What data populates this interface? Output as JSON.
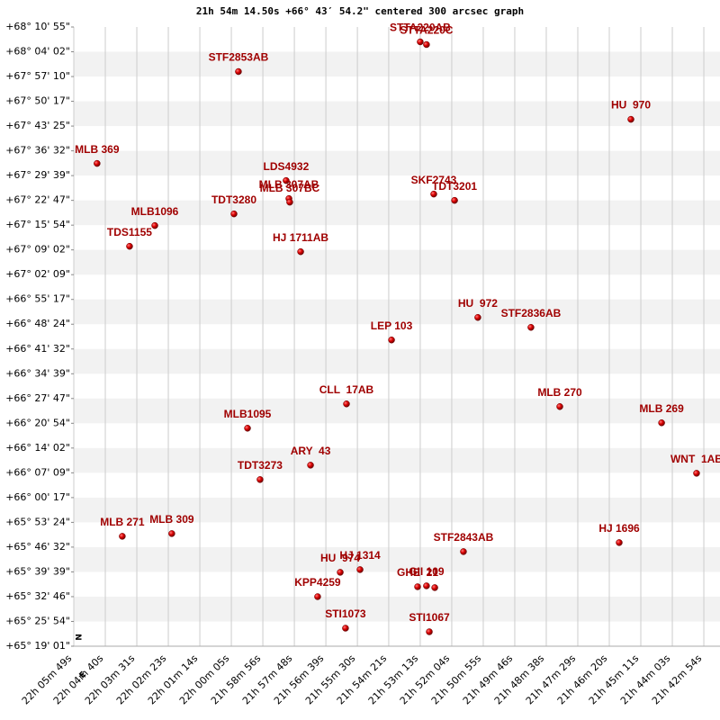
{
  "chart_data": {
    "type": "scatter",
    "title": "21h 54m 14.50s +66° 43′ 54.2\" centered 300 arcsec graph",
    "x": [
      21.9971,
      21.8869,
      21.8831,
      21.7592,
      22.0828,
      21.9682,
      21.9665,
      21.966,
      21.9998,
      22.0478,
      21.8787,
      21.8661,
      22.0631,
      21.9594,
      21.852,
      21.8198,
      21.9043,
      21.9316,
      21.8023,
      21.7406,
      21.9916,
      21.9534,
      21.984,
      21.7194,
      22.0675,
      22.0375,
      21.7663,
      21.8607,
      21.9354,
      21.9234,
      21.8885,
      21.8831,
      21.8781,
      21.9491,
      21.9322,
      21.8814
    ],
    "values": [
      67.9753,
      68.1128,
      68.1003,
      67.7544,
      67.5503,
      67.4711,
      67.3878,
      67.3711,
      67.3169,
      67.2628,
      67.4086,
      67.3794,
      67.1669,
      67.1419,
      66.8378,
      66.7919,
      66.7336,
      66.4378,
      66.4253,
      66.3503,
      66.3253,
      66.1544,
      66.0878,
      66.1169,
      65.8253,
      65.8378,
      65.7961,
      65.7544,
      65.6586,
      65.6711,
      65.5919,
      65.5961,
      65.5878,
      65.5461,
      65.4003,
      65.3836
    ],
    "point_labels": [
      "STF2853AB",
      "STTA220AB",
      "STTA220C",
      "HU  970",
      "MLB 369",
      "LDS4932",
      "MLB 307AB",
      "MLB 307BC",
      "TDT3280",
      "MLB1096",
      "SKF2743",
      "TDT3201",
      "TDS1155",
      "HJ 1711AB",
      "HU  972",
      "STF2836AB",
      "LEP 103",
      "CLL  17AB",
      "MLB 270",
      "MLB 269",
      "MLB1095",
      "ARY  43",
      "TDT3273",
      "WNT  1AB",
      "MLB 271",
      "MLB 309",
      "HJ 1696",
      "STF2843AB",
      "HU  974",
      "HJ 1314",
      "GHE  21",
      "GII 109",
      null,
      "KPP4259",
      "STI1073",
      "STI1067"
    ],
    "color": "#cc0000",
    "xlim": [
      22.0969,
      21.7052
    ],
    "ylim": [
      65.3169,
      68.1815
    ],
    "xticks": [
      {
        "value": 22.0969,
        "label": "22h 05m 49s"
      },
      {
        "value": 22.0778,
        "label": "22h 04m 40s"
      },
      {
        "value": 22.0587,
        "label": "22h 03m 31s"
      },
      {
        "value": 22.0396,
        "label": "22h 02m 23s"
      },
      {
        "value": 22.0205,
        "label": "22h 01m 14s"
      },
      {
        "value": 22.0014,
        "label": "22h 00m 05s"
      },
      {
        "value": 21.9823,
        "label": "21h 58m 56s"
      },
      {
        "value": 21.9632,
        "label": "21h 57m 48s"
      },
      {
        "value": 21.9441,
        "label": "21h 56m 39s"
      },
      {
        "value": 21.925,
        "label": "21h 55m 30s"
      },
      {
        "value": 21.906,
        "label": "21h 54m 21s"
      },
      {
        "value": 21.8869,
        "label": "21h 53m 13s"
      },
      {
        "value": 21.8678,
        "label": "21h 52m 04s"
      },
      {
        "value": 21.8487,
        "label": "21h 50m 55s"
      },
      {
        "value": 21.8296,
        "label": "21h 49m 46s"
      },
      {
        "value": 21.8105,
        "label": "21h 48m 38s"
      },
      {
        "value": 21.7914,
        "label": "21h 47m 29s"
      },
      {
        "value": 21.7723,
        "label": "21h 46m 20s"
      },
      {
        "value": 21.7532,
        "label": "21h 45m 11s"
      },
      {
        "value": 21.7341,
        "label": "21h 44m 03s"
      },
      {
        "value": 21.715,
        "label": "21h 42m 54s"
      }
    ],
    "yticks": [
      {
        "value": 65.3169,
        "label": "+65° 19' 01\""
      },
      {
        "value": 65.4315,
        "label": "+65° 25' 54\""
      },
      {
        "value": 65.5461,
        "label": "+65° 32' 46\""
      },
      {
        "value": 65.6607,
        "label": "+65° 39' 39\""
      },
      {
        "value": 65.7753,
        "label": "+65° 46' 32\""
      },
      {
        "value": 65.8898,
        "label": "+65° 53' 24\""
      },
      {
        "value": 66.0044,
        "label": "+66° 00' 17\""
      },
      {
        "value": 66.119,
        "label": "+66° 07' 09\""
      },
      {
        "value": 66.2336,
        "label": "+66° 14' 02\""
      },
      {
        "value": 66.3482,
        "label": "+66° 20' 54\""
      },
      {
        "value": 66.4628,
        "label": "+66° 27' 47\""
      },
      {
        "value": 66.5773,
        "label": "+66° 34' 39\""
      },
      {
        "value": 66.6919,
        "label": "+66° 41' 32\""
      },
      {
        "value": 66.8065,
        "label": "+66° 48' 24\""
      },
      {
        "value": 66.9211,
        "label": "+66° 55' 17\""
      },
      {
        "value": 67.0357,
        "label": "+67° 02' 09\""
      },
      {
        "value": 67.1503,
        "label": "+67° 09' 02\""
      },
      {
        "value": 67.2648,
        "label": "+67° 15' 54\""
      },
      {
        "value": 67.3794,
        "label": "+67° 22' 47\""
      },
      {
        "value": 67.494,
        "label": "+67° 29' 39\""
      },
      {
        "value": 67.6086,
        "label": "+67° 36' 32\""
      },
      {
        "value": 67.7232,
        "label": "+67° 43' 25\""
      },
      {
        "value": 67.8378,
        "label": "+67° 50' 17\""
      },
      {
        "value": 67.9523,
        "label": "+67° 57' 10\""
      },
      {
        "value": 68.0669,
        "label": "+68° 04' 02\""
      },
      {
        "value": 68.1815,
        "label": "+68° 10' 55\""
      }
    ],
    "grid": true,
    "compass": {
      "north": "N",
      "east": "E"
    }
  }
}
